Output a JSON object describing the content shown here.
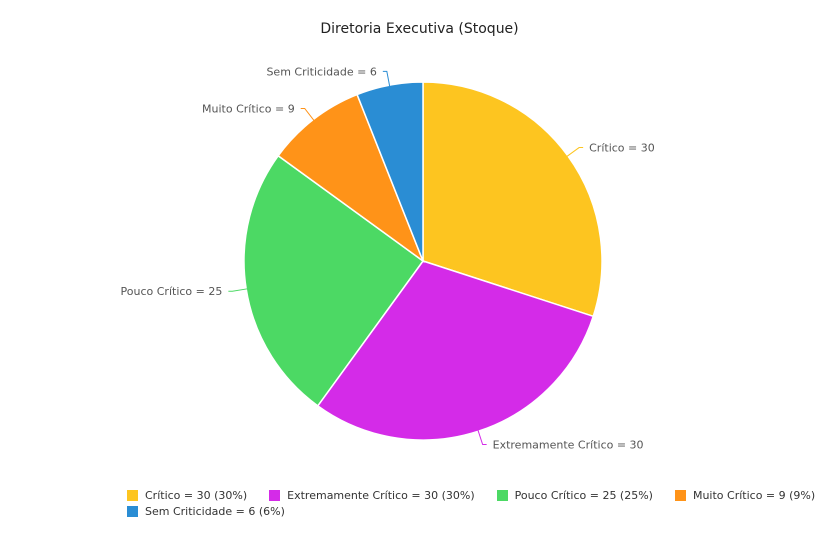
{
  "chart_data": {
    "type": "pie",
    "title": "Diretoria Executiva (Stoque)",
    "slices": [
      {
        "label": "Crítico",
        "value": 30,
        "percent": 30,
        "color": "#FDC520",
        "slice_label": "Crítico = 30",
        "legend_label": "Crítico = 30 (30%)"
      },
      {
        "label": "Extremamente Crítico",
        "value": 30,
        "percent": 30,
        "color": "#D42BE8",
        "slice_label": "Extremamente Crítico = 30",
        "legend_label": "Extremamente Crítico = 30 (30%)"
      },
      {
        "label": "Pouco Crítico",
        "value": 25,
        "percent": 25,
        "color": "#4CD964",
        "slice_label": "Pouco Crítico = 25",
        "legend_label": "Pouco Crítico = 25 (25%)"
      },
      {
        "label": "Muito Crítico",
        "value": 9,
        "percent": 9,
        "color": "#FF9318",
        "slice_label": "Muito Crítico = 9",
        "legend_label": "Muito Crítico = 9 (9%)"
      },
      {
        "label": "Sem Criticidade",
        "value": 6,
        "percent": 6,
        "color": "#2A8DD4",
        "slice_label": "Sem Criticidade = 6",
        "legend_label": "Sem Criticidade = 6 (6%)"
      }
    ],
    "legend_position": "bottom"
  }
}
